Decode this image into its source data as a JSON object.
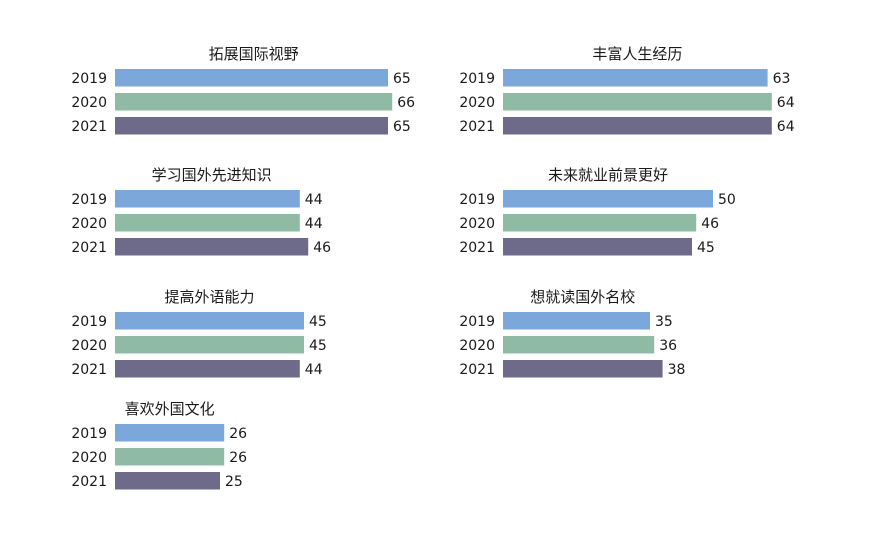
{
  "chart_data": {
    "type": "bar",
    "orientation": "horizontal",
    "years": [
      "2019",
      "2020",
      "2021"
    ],
    "colors": {
      "2019": "#7ba7db",
      "2020": "#8fbba4",
      "2021": "#6e6b8a"
    },
    "panels": [
      {
        "title": "拓展国际视野",
        "values": [
          65,
          66,
          65
        ]
      },
      {
        "title": "丰富人生经历",
        "values": [
          63,
          64,
          64
        ]
      },
      {
        "title": "学习国外先进知识",
        "values": [
          44,
          44,
          46
        ]
      },
      {
        "title": "未来就业前景更好",
        "values": [
          50,
          46,
          45
        ]
      },
      {
        "title": "提高外语能力",
        "values": [
          45,
          45,
          44
        ]
      },
      {
        "title": "想就读国外名校",
        "values": [
          35,
          36,
          38
        ]
      },
      {
        "title": "喜欢外国文化",
        "values": [
          26,
          26,
          25
        ]
      }
    ]
  }
}
